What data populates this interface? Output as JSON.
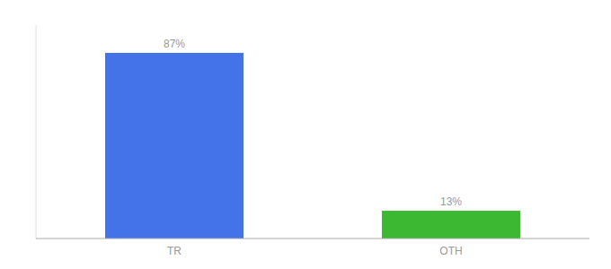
{
  "chart_data": {
    "type": "bar",
    "categories": [
      "TR",
      "OTH"
    ],
    "values": [
      87,
      13
    ],
    "value_labels": [
      "87%",
      "13%"
    ],
    "colors": [
      "#4472e8",
      "#3cb832"
    ],
    "ylim": [
      0,
      100
    ],
    "yticks": [],
    "data_labels": true,
    "tick_labels": "x",
    "grid": false
  }
}
